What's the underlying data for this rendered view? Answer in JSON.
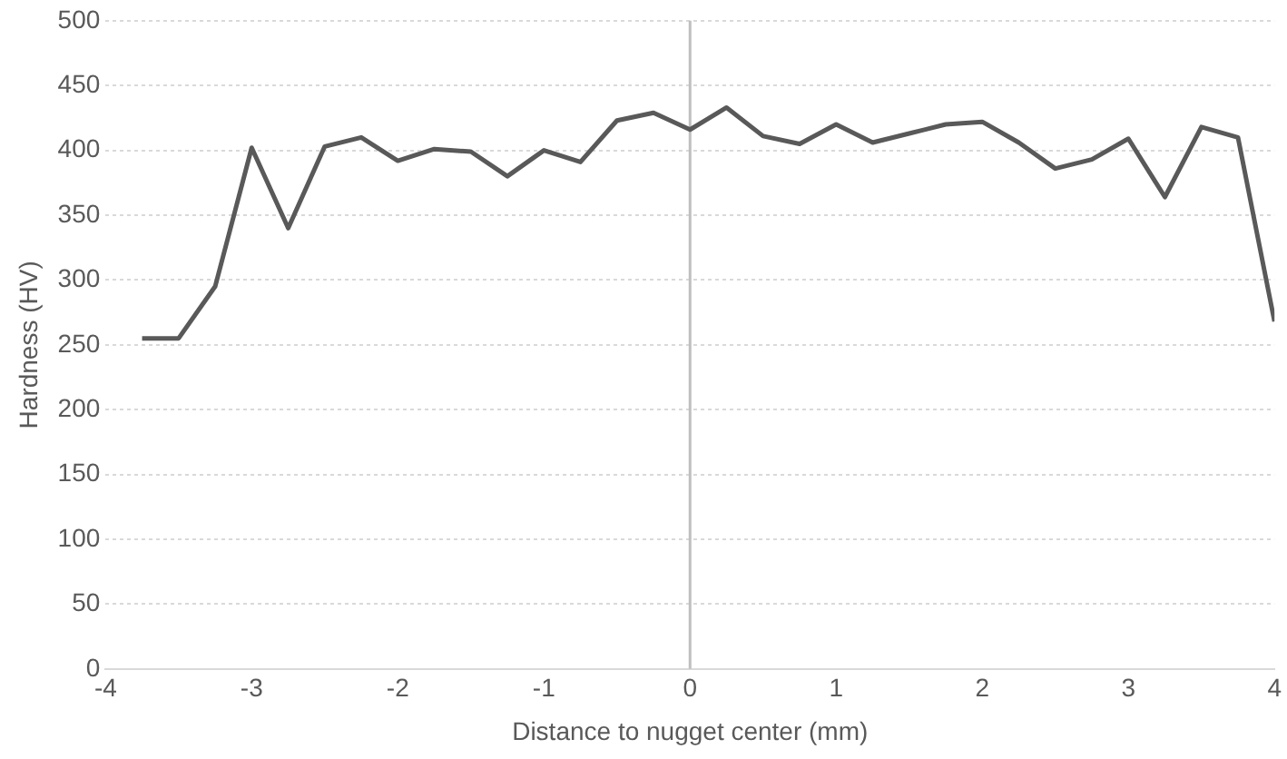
{
  "chart_data": {
    "type": "line",
    "xlabel": "Distance to nugget center (mm)",
    "ylabel": "Hardness (HV)",
    "x": [
      -3.75,
      -3.5,
      -3.25,
      -3,
      -2.75,
      -2.5,
      -2.25,
      -2,
      -1.75,
      -1.5,
      -1.25,
      -1,
      -0.75,
      -0.5,
      -0.25,
      0,
      0.25,
      0.5,
      0.75,
      1,
      1.25,
      1.5,
      1.75,
      2,
      2.25,
      2.5,
      2.75,
      3,
      3.25,
      3.5,
      3.75,
      4
    ],
    "series": [
      {
        "color": "#595959",
        "values": [
          255,
          255,
          295,
          402,
          340,
          403,
          410,
          392,
          401,
          399,
          380,
          400,
          391,
          423,
          429,
          416,
          433,
          411,
          405,
          420,
          406,
          413,
          420,
          422,
          406,
          386,
          393,
          409,
          364,
          418,
          410,
          268
        ]
      }
    ],
    "xlim": [
      -4,
      4
    ],
    "xticks": [
      -4,
      -3,
      -2,
      -1,
      0,
      1,
      2,
      3,
      4
    ],
    "ylim": [
      0,
      500
    ],
    "yticks": [
      0,
      50,
      100,
      150,
      200,
      250,
      300,
      350,
      400,
      450,
      500
    ],
    "grid": "y",
    "legend": false,
    "marker": "none",
    "line_style": "solid",
    "ref_lines": [
      {
        "axis": "x",
        "value": 0,
        "color": "#bfbfbf"
      }
    ]
  }
}
